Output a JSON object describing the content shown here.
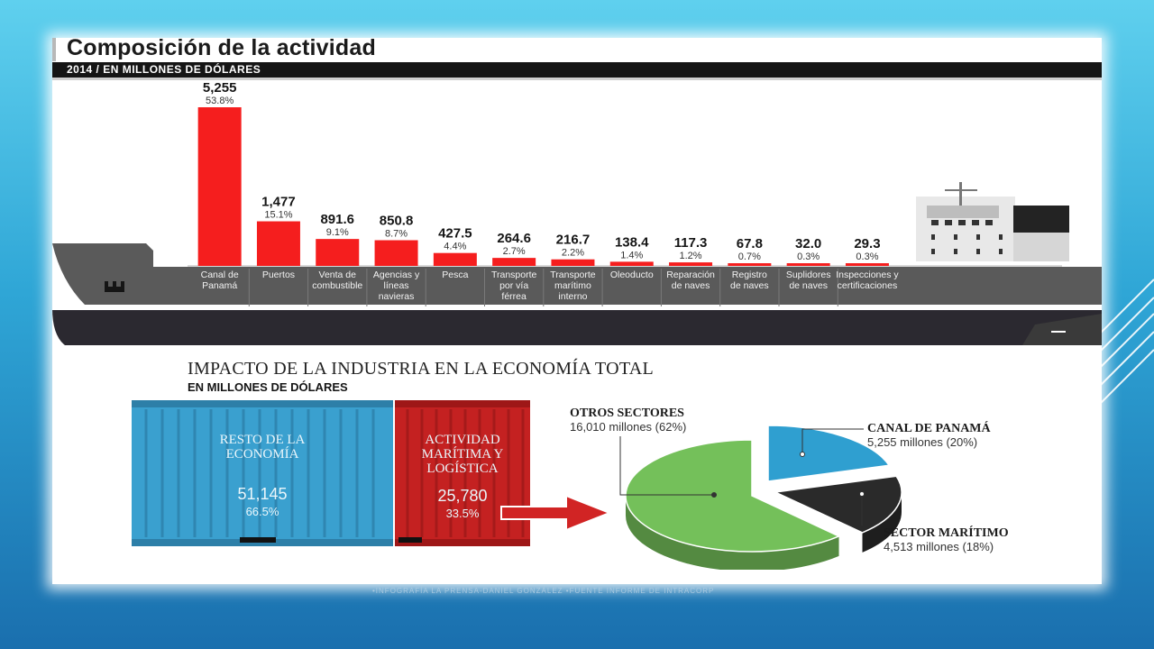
{
  "title": "Composición de la actividad",
  "subtitle": "2014 / EN MILLONES DE DÓLARES",
  "chart_data": [
    {
      "type": "bar",
      "title": "Composición de la actividad",
      "subtitle": "2014 / EN MILLONES DE DÓLARES",
      "categories": [
        [
          "Canal de",
          "Panamá"
        ],
        [
          "Puertos"
        ],
        [
          "Venta de",
          "combustible"
        ],
        [
          "Agencias y",
          "líneas",
          "navieras"
        ],
        [
          "Pesca"
        ],
        [
          "Transporte",
          "por vía",
          "férrea"
        ],
        [
          "Transporte",
          "marítimo",
          "interno"
        ],
        [
          "Oleoducto"
        ],
        [
          "Reparación",
          "de naves"
        ],
        [
          "Registro",
          "de naves"
        ],
        [
          "Suplidores",
          "de naves"
        ],
        [
          "Inspecciones y",
          "certificaciones"
        ]
      ],
      "values": [
        5255,
        1477,
        891.6,
        850.8,
        427.5,
        264.6,
        216.7,
        138.4,
        117.3,
        67.8,
        32.0,
        29.3
      ],
      "value_labels": [
        "5,255",
        "1,477",
        "891.6",
        "850.8",
        "427.5",
        "264.6",
        "216.7",
        "138.4",
        "117.3",
        "67.8",
        "32.0",
        "29.3"
      ],
      "percent_labels": [
        "53.8%",
        "15.1%",
        "9.1%",
        "8.7%",
        "4.4%",
        "2.7%",
        "2.2%",
        "1.4%",
        "1.2%",
        "0.7%",
        "0.3%",
        "0.3%"
      ],
      "bar_color": "#f51e1e",
      "grid": false
    },
    {
      "type": "pie",
      "title": "IMPACTO DE LA INDUSTRIA EN LA ECONOMÍA TOTAL",
      "subtitle": "EN MILLONES DE DÓLARES",
      "slices": [
        {
          "name": "OTROS SECTORES",
          "label": "16,010 millones (62%)",
          "value": 16010,
          "percent": 62,
          "color": "#74c05a"
        },
        {
          "name": "CANAL DE PANAMÁ",
          "label": "5,255 millones (20%)",
          "value": 5255,
          "percent": 20,
          "color": "#2f9fd0"
        },
        {
          "name": "SECTOR MARÍTIMO",
          "label": "4,513 millones (18%)",
          "value": 4513,
          "percent": 18,
          "color": "#2a2a2a"
        }
      ]
    }
  ],
  "impact": {
    "title": "IMPACTO DE LA INDUSTRIA EN LA ECONOMÍA TOTAL",
    "subtitle": "EN MILLONES DE DÓLARES",
    "blue_container": {
      "label_line1": "RESTO DE LA",
      "label_line2": "ECONOMÍA",
      "value": "51,145",
      "percent": "66.5%",
      "color": "#3aa0cf"
    },
    "red_container": {
      "label_line1": "ACTIVIDAD",
      "label_line2": "MARÍTIMA Y",
      "label_line3": "LOGÍSTICA",
      "value": "25,780",
      "percent": "33.5%",
      "color": "#c42121"
    }
  },
  "footer": "•INFOGRAFÍA LA PRENSA-DANIEL GONZÁLEZ  •FUENTE INFORME DE INTRACORP",
  "colors": {
    "ship_hull": "#5a5a5a",
    "ship_keel": "#2b2930",
    "arrow": "#d12424"
  }
}
